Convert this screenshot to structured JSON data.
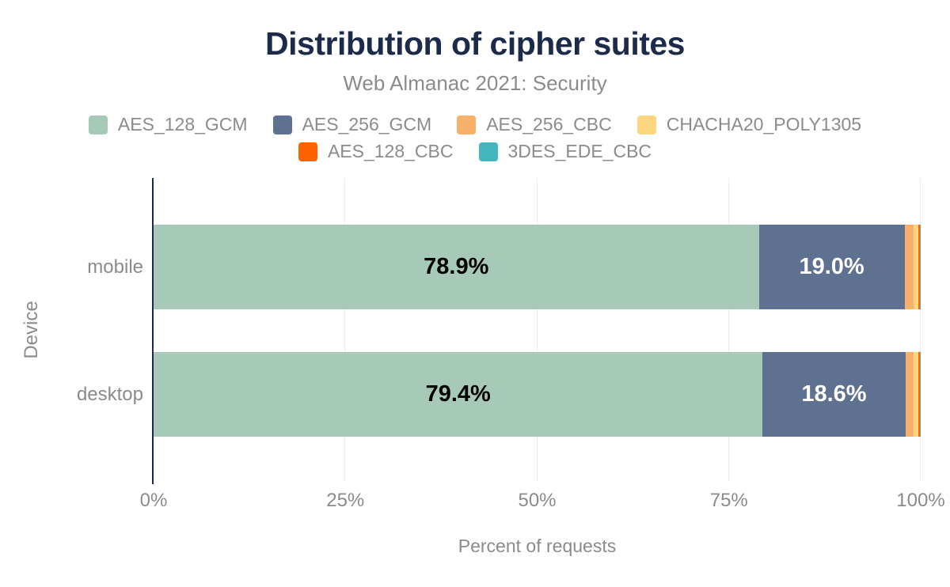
{
  "chart_data": {
    "type": "bar",
    "variant": "horizontal-stacked",
    "title": "Distribution of cipher suites",
    "subtitle": "Web Almanac 2021: Security",
    "xlabel": "Percent of requests",
    "ylabel": "Device",
    "categories": [
      "mobile",
      "desktop"
    ],
    "xlim": [
      0,
      100
    ],
    "grid": "vertical-light",
    "legend_position": "top",
    "x_ticks": [
      {
        "value": 0,
        "label": "0%"
      },
      {
        "value": 25,
        "label": "25%"
      },
      {
        "value": 50,
        "label": "50%"
      },
      {
        "value": 75,
        "label": "75%"
      },
      {
        "value": 100,
        "label": "100%"
      }
    ],
    "series": [
      {
        "name": "AES_128_GCM",
        "color": "#a7c9b8",
        "values": [
          78.9,
          79.4
        ],
        "labels": [
          "78.9%",
          "79.4%"
        ],
        "label_color": "#000000"
      },
      {
        "name": "AES_256_GCM",
        "color": "#5f7190",
        "values": [
          19.0,
          18.6
        ],
        "labels": [
          "19.0%",
          "18.6%"
        ],
        "label_color": "#ffffff"
      },
      {
        "name": "AES_256_CBC",
        "color": "#f8b16a",
        "values": [
          1.2,
          1.1
        ],
        "labels": [
          "",
          ""
        ],
        "label_color": "#000000"
      },
      {
        "name": "CHACHA20_POLY1305",
        "color": "#fcd780",
        "values": [
          0.6,
          0.6
        ],
        "labels": [
          "",
          ""
        ],
        "label_color": "#000000"
      },
      {
        "name": "AES_128_CBC",
        "color": "#fe6201",
        "values": [
          0.2,
          0.2
        ],
        "labels": [
          "",
          ""
        ],
        "label_color": "#000000"
      },
      {
        "name": "3DES_EDE_CBC",
        "color": "#43b7bd",
        "values": [
          0.1,
          0.1
        ],
        "labels": [
          "",
          ""
        ],
        "label_color": "#000000"
      }
    ],
    "legend_rows": [
      [
        0,
        1,
        2,
        3
      ],
      [
        4,
        5
      ]
    ],
    "style": {
      "background": "#ffffff",
      "title_color": "#1b2b49",
      "subtitle_color": "#8b8b8b",
      "axis_text_color": "#8b8b8b",
      "axis_line_color": "#1b2b49",
      "gridline_color": "#ededed"
    }
  }
}
